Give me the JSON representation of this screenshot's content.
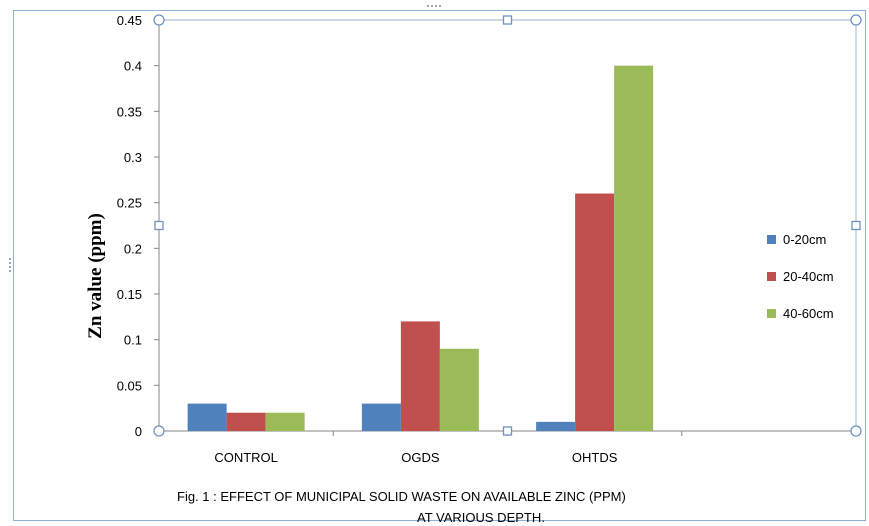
{
  "chart_data": {
    "type": "bar",
    "categories": [
      "CONTROL",
      "OGDS",
      "OHTDS"
    ],
    "series": [
      {
        "name": "0-20cm",
        "values": [
          0.03,
          0.03,
          0.01
        ],
        "color": "#4f81bd"
      },
      {
        "name": "20-40cm",
        "values": [
          0.02,
          0.12,
          0.26
        ],
        "color": "#c0504d"
      },
      {
        "name": "40-60cm",
        "values": [
          0.02,
          0.09,
          0.4
        ],
        "color": "#9bbb59"
      }
    ],
    "ylabel": "Zn  value  (ppm)",
    "ylim": [
      0,
      0.45
    ],
    "yticks": [
      "0",
      "0.05",
      "0.1",
      "0.15",
      "0.2",
      "0.25",
      "0.3",
      "0.35",
      "0.4",
      "0.45"
    ],
    "grid": false,
    "legend": "right"
  },
  "caption": {
    "line1": "Fig. 1 : EFFECT OF MUNICIPAL SOLID WASTE ON AVAILABLE ZINC (PPM)",
    "line2": "AT VARIOUS DEPTH."
  },
  "colors": {
    "frame": "#8fb0d8",
    "handle_fill": "#ffffff",
    "handle_stroke": "#6f92c4",
    "axis": "#868686"
  }
}
